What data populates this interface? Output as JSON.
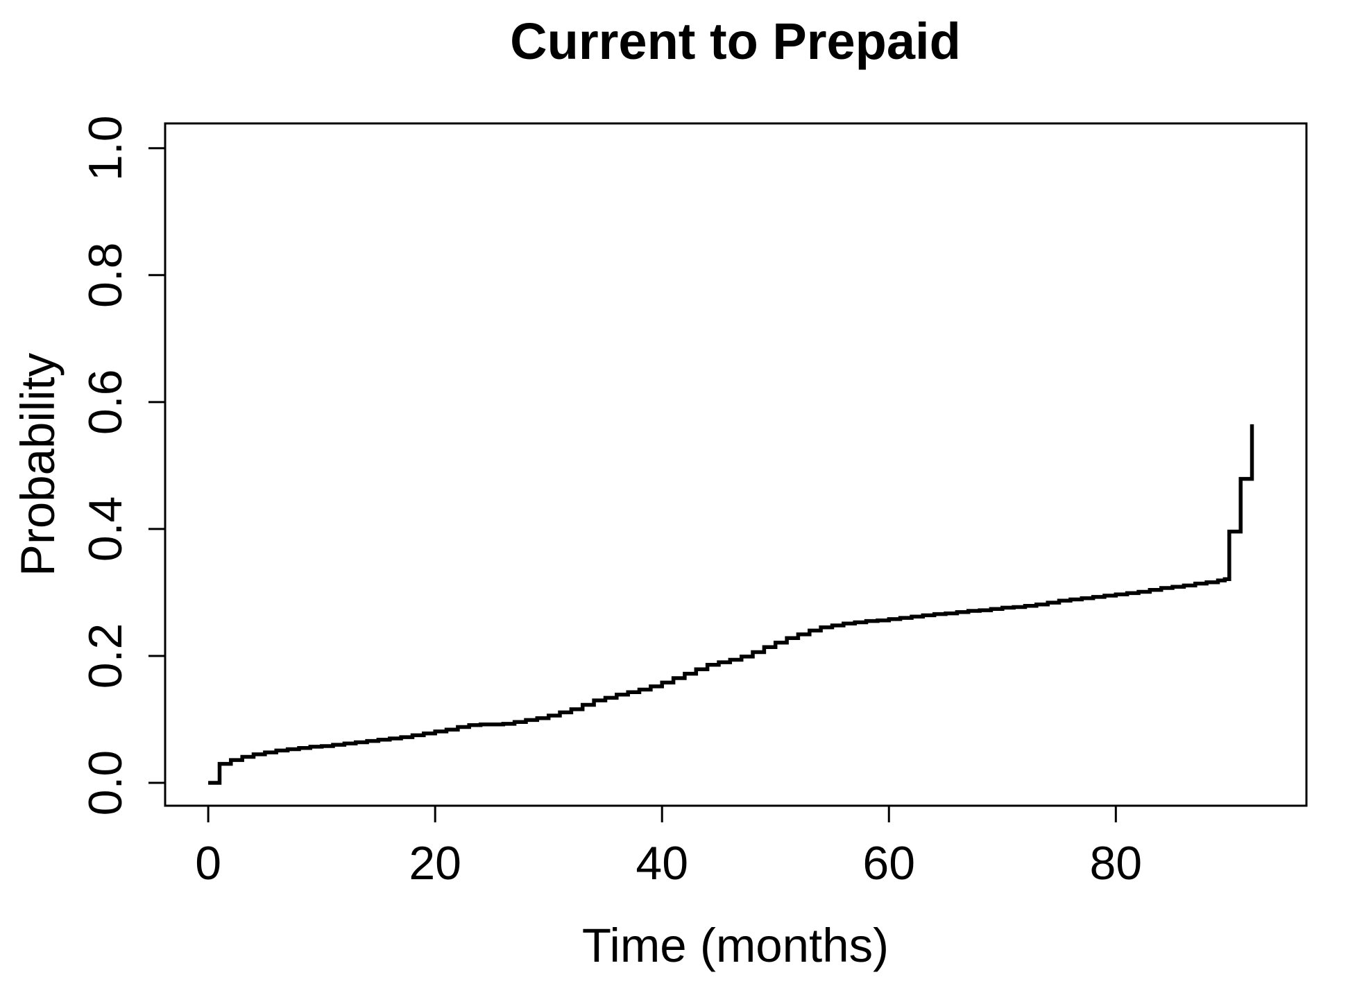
{
  "chart_data": {
    "type": "line",
    "subtype": "step-after",
    "title": "Current to Prepaid",
    "xlabel": "Time (months)",
    "ylabel": "Probability",
    "x_tick_labels": [
      "0",
      "20",
      "40",
      "60",
      "80"
    ],
    "x_tick_values": [
      0,
      20,
      40,
      60,
      80
    ],
    "y_tick_labels": [
      "0.0",
      "0.2",
      "0.4",
      "0.6",
      "0.8",
      "1.0"
    ],
    "y_tick_values": [
      0.0,
      0.2,
      0.4,
      0.6,
      0.8,
      1.0
    ],
    "xlim": [
      -3.8,
      96.8
    ],
    "ylim": [
      -0.036,
      1.039
    ],
    "grid": false,
    "legend": "none",
    "line_color": "#000000",
    "background_color": "#ffffff",
    "series": [
      {
        "name": "cumulative-incidence-current-to-prepaid",
        "points": [
          [
            0,
            0.0
          ],
          [
            1,
            0.03
          ],
          [
            2,
            0.036
          ],
          [
            3,
            0.041
          ],
          [
            4,
            0.045
          ],
          [
            5,
            0.048
          ],
          [
            6,
            0.051
          ],
          [
            7,
            0.053
          ],
          [
            8,
            0.055
          ],
          [
            9,
            0.057
          ],
          [
            10,
            0.058
          ],
          [
            11,
            0.06
          ],
          [
            12,
            0.062
          ],
          [
            13,
            0.064
          ],
          [
            14,
            0.066
          ],
          [
            15,
            0.068
          ],
          [
            16,
            0.07
          ],
          [
            17,
            0.072
          ],
          [
            18,
            0.075
          ],
          [
            19,
            0.078
          ],
          [
            20,
            0.081
          ],
          [
            21,
            0.084
          ],
          [
            22,
            0.088
          ],
          [
            23,
            0.091
          ],
          [
            24,
            0.092
          ],
          [
            25,
            0.092
          ],
          [
            26,
            0.093
          ],
          [
            27,
            0.096
          ],
          [
            28,
            0.099
          ],
          [
            29,
            0.102
          ],
          [
            30,
            0.106
          ],
          [
            31,
            0.111
          ],
          [
            32,
            0.116
          ],
          [
            33,
            0.123
          ],
          [
            34,
            0.13
          ],
          [
            35,
            0.134
          ],
          [
            36,
            0.139
          ],
          [
            37,
            0.143
          ],
          [
            38,
            0.147
          ],
          [
            39,
            0.152
          ],
          [
            40,
            0.158
          ],
          [
            41,
            0.165
          ],
          [
            42,
            0.172
          ],
          [
            43,
            0.179
          ],
          [
            44,
            0.186
          ],
          [
            45,
            0.19
          ],
          [
            46,
            0.194
          ],
          [
            47,
            0.199
          ],
          [
            48,
            0.206
          ],
          [
            49,
            0.214
          ],
          [
            50,
            0.221
          ],
          [
            51,
            0.228
          ],
          [
            52,
            0.234
          ],
          [
            53,
            0.24
          ],
          [
            54,
            0.245
          ],
          [
            55,
            0.248
          ],
          [
            56,
            0.251
          ],
          [
            57,
            0.253
          ],
          [
            58,
            0.255
          ],
          [
            59,
            0.256
          ],
          [
            60,
            0.258
          ],
          [
            61,
            0.26
          ],
          [
            62,
            0.262
          ],
          [
            63,
            0.264
          ],
          [
            64,
            0.266
          ],
          [
            65,
            0.267
          ],
          [
            66,
            0.269
          ],
          [
            67,
            0.271
          ],
          [
            68,
            0.272
          ],
          [
            69,
            0.274
          ],
          [
            70,
            0.276
          ],
          [
            71,
            0.277
          ],
          [
            72,
            0.279
          ],
          [
            73,
            0.281
          ],
          [
            74,
            0.284
          ],
          [
            75,
            0.287
          ],
          [
            76,
            0.289
          ],
          [
            77,
            0.291
          ],
          [
            78,
            0.293
          ],
          [
            79,
            0.295
          ],
          [
            80,
            0.297
          ],
          [
            81,
            0.299
          ],
          [
            82,
            0.301
          ],
          [
            83,
            0.304
          ],
          [
            84,
            0.307
          ],
          [
            85,
            0.309
          ],
          [
            86,
            0.311
          ],
          [
            87,
            0.314
          ],
          [
            88,
            0.316
          ],
          [
            89,
            0.319
          ],
          [
            89.6,
            0.321
          ],
          [
            90,
            0.396
          ],
          [
            91,
            0.479
          ],
          [
            92,
            0.565
          ]
        ]
      }
    ]
  }
}
